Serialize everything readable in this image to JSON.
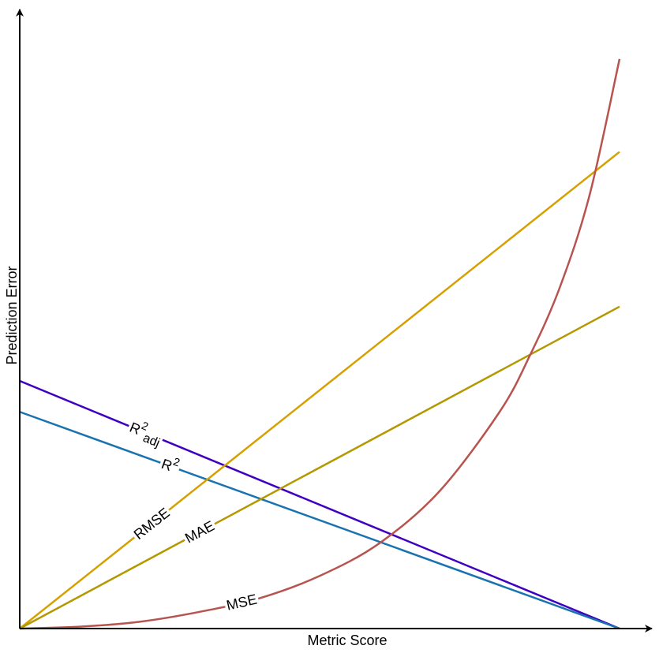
{
  "chart_data": {
    "type": "line",
    "title": "",
    "xlabel": "Metric Score",
    "ylabel": "Prediction Error",
    "xlim": [
      0,
      1
    ],
    "ylim": [
      0,
      1
    ],
    "ticks": "none",
    "grid": false,
    "series": [
      {
        "name": "R2adj",
        "label_main": "R",
        "label_sup": "2",
        "label_sub": "adj",
        "color": "#3f00c0",
        "x": [
          0,
          1
        ],
        "y": [
          0.4,
          0.0
        ]
      },
      {
        "name": "R2",
        "label_main": "R",
        "label_sup": "2",
        "label_sub": "",
        "color": "#1a73b0",
        "x": [
          0,
          1
        ],
        "y": [
          0.35,
          0.0
        ]
      },
      {
        "name": "RMSE",
        "label_main": "RMSE",
        "color": "#d6a000",
        "x": [
          0,
          1
        ],
        "y": [
          0.0,
          0.77
        ]
      },
      {
        "name": "MAE",
        "label_main": "MAE",
        "color": "#b39800",
        "x": [
          0,
          1
        ],
        "y": [
          0.0,
          0.52
        ]
      },
      {
        "name": "MSE",
        "label_main": "MSE",
        "color": "#b85450",
        "curve": "exponential",
        "x": [
          0,
          0.1,
          0.2,
          0.3,
          0.4,
          0.5,
          0.6,
          0.7,
          0.8,
          0.85,
          0.9,
          0.95,
          1.0
        ],
        "y": [
          0.0,
          0.003,
          0.011,
          0.027,
          0.049,
          0.085,
          0.138,
          0.222,
          0.35,
          0.44,
          0.55,
          0.7,
          0.92
        ]
      }
    ]
  }
}
